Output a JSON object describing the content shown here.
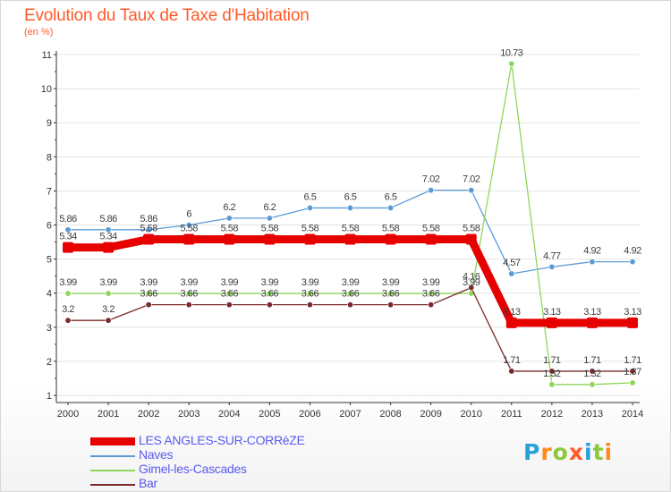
{
  "page": {
    "title": "Evolution du Taux de Taxe d'Habitation",
    "unit": "(en %)",
    "logo": "Proxiti"
  },
  "colors": {
    "title": "#ff5a2a",
    "legend_text": "#5a5af0",
    "logo": [
      "#29a0d8",
      "#ff8a1a",
      "#8ac83c",
      "#ff5a2a",
      "#29a0d8",
      "#8ac83c",
      "#ff8a1a"
    ]
  },
  "chart_data": {
    "type": "line",
    "title": "Evolution du Taux de Taxe d'Habitation",
    "subtitle": "(en %)",
    "xlabel": "",
    "ylabel": "",
    "x": [
      "2000",
      "2001",
      "2002",
      "2003",
      "2004",
      "2005",
      "2006",
      "2007",
      "2008",
      "2009",
      "2010",
      "2011",
      "2012",
      "2013",
      "2014"
    ],
    "ylim": [
      1,
      11
    ],
    "yticks": [
      1,
      2,
      3,
      4,
      5,
      6,
      7,
      8,
      9,
      10,
      11
    ],
    "grid": "horizontal",
    "legend_position": "bottom-left",
    "series": [
      {
        "name": "LES ANGLES-SUR-CORRèZE",
        "color": "#e60000",
        "style": "thick",
        "values": [
          5.34,
          5.34,
          5.58,
          5.58,
          5.58,
          5.58,
          5.58,
          5.58,
          5.58,
          5.58,
          5.58,
          3.13,
          3.13,
          3.13,
          3.13
        ],
        "labels": [
          "5.34",
          "5.34",
          "5.58",
          "5.58",
          "5.58",
          "5.58",
          "5.58",
          "5.58",
          "5.58",
          "5.58",
          "5.58",
          "3.13",
          "3.13",
          "3.13",
          "3.13"
        ]
      },
      {
        "name": "Naves",
        "color": "#5b9bd5",
        "style": "thin",
        "values": [
          5.86,
          5.86,
          5.86,
          6,
          6.2,
          6.2,
          6.5,
          6.5,
          6.5,
          7.02,
          7.02,
          4.57,
          4.77,
          4.92,
          4.92
        ],
        "labels": [
          "5.86",
          "5.86",
          "5.86",
          "6",
          "6.2",
          "6.2",
          "6.5",
          "6.5",
          "6.5",
          "7.02",
          "7.02",
          "4.57",
          "4.77",
          "4.92",
          "4.92"
        ]
      },
      {
        "name": "Gimel-les-Cascades",
        "color": "#8ed65c",
        "style": "thin",
        "values": [
          3.99,
          3.99,
          3.99,
          3.99,
          3.99,
          3.99,
          3.99,
          3.99,
          3.99,
          3.99,
          3.99,
          10.73,
          1.32,
          1.32,
          1.37
        ],
        "labels": [
          "3.99",
          "3.99",
          "3.99",
          "3.99",
          "3.99",
          "3.99",
          "3.99",
          "3.99",
          "3.99",
          "3.99",
          "3.99",
          "10.73",
          "1.32",
          "1.32",
          "1.37"
        ]
      },
      {
        "name": "Bar",
        "color": "#7a2a2a",
        "style": "thin",
        "values": [
          3.2,
          3.2,
          3.66,
          3.66,
          3.66,
          3.66,
          3.66,
          3.66,
          3.66,
          3.66,
          4.16,
          1.71,
          1.71,
          1.71,
          1.71
        ],
        "labels": [
          "3.2",
          "3.2",
          "3.66",
          "3.66",
          "3.66",
          "3.66",
          "3.66",
          "3.66",
          "3.66",
          "3.66",
          "4.16",
          "1.71",
          "1.71",
          "1.71",
          "1.71"
        ]
      }
    ]
  }
}
